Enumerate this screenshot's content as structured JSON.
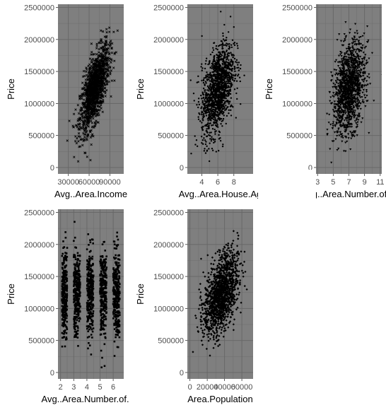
{
  "chart_data": [
    {
      "type": "scatter",
      "title": "",
      "xlabel": "Avg..Area.Income",
      "ylabel": "Price",
      "xlim": [
        15000,
        110000
      ],
      "ylim": [
        -100000,
        2550000
      ],
      "xticks": [
        30000,
        60000,
        90000
      ],
      "xtick_labels": [
        "30000",
        "60000",
        "90000"
      ],
      "yticks": [
        0,
        500000,
        1000000,
        1500000,
        2000000,
        2500000
      ],
      "ytick_labels": [
        "0",
        "500000",
        "1000000",
        "1500000",
        "2000000",
        "2500000"
      ],
      "marker": "x",
      "series": [
        {
          "x": [
            68000,
            72000,
            64000,
            80000,
            56000,
            75000,
            85000,
            60000,
            70000,
            48000,
            90000,
            66000
          ],
          "y": [
            1230000,
            1330000,
            1060000,
            1600000,
            880000,
            1450000,
            1790000,
            980000,
            1280000,
            620000,
            1950000,
            1150000
          ]
        }
      ],
      "grid": true
    },
    {
      "type": "scatter",
      "title": "",
      "xlabel": "Avg..Area.House.Ag",
      "ylabel": "Price",
      "xlim": [
        2.2,
        10.4
      ],
      "ylim": [
        -100000,
        2550000
      ],
      "xticks": [
        4,
        6,
        8
      ],
      "xtick_labels": [
        "4",
        "6",
        "8"
      ],
      "yticks": [
        0,
        500000,
        1000000,
        1500000,
        2000000,
        2500000
      ],
      "ytick_labels": [
        "0",
        "500000",
        "1000000",
        "1500000",
        "2000000",
        "2500000"
      ],
      "marker": "dot",
      "series": [
        {
          "x": [
            6.0,
            6.5,
            5.5,
            7.0,
            5.0,
            6.2,
            7.5,
            4.5,
            6.8,
            5.8,
            8.0,
            4.0
          ],
          "y": [
            1230000,
            1350000,
            1100000,
            1450000,
            980000,
            1260000,
            1600000,
            850000,
            1400000,
            1150000,
            1750000,
            700000
          ]
        }
      ],
      "grid": true
    },
    {
      "type": "scatter",
      "title": "",
      "xlabel": "Avg..Area.Number.of.R",
      "ylabel": "Price",
      "xlim": [
        2.8,
        11.2
      ],
      "ylim": [
        -100000,
        2550000
      ],
      "xticks": [
        3,
        5,
        7,
        9,
        11
      ],
      "xtick_labels": [
        "3",
        "5",
        "7",
        "9",
        "11"
      ],
      "yticks": [
        0,
        500000,
        1000000,
        1500000,
        2000000,
        2500000
      ],
      "ytick_labels": [
        "0",
        "500000",
        "1000000",
        "1500000",
        "2000000",
        "2500000"
      ],
      "marker": "triangle-down",
      "series": [
        {
          "x": [
            7.0,
            7.5,
            6.5,
            8.0,
            6.0,
            7.2,
            8.5,
            5.5,
            7.8,
            6.8,
            9.0,
            5.0
          ],
          "y": [
            1230000,
            1320000,
            1140000,
            1400000,
            1050000,
            1260000,
            1480000,
            980000,
            1360000,
            1200000,
            1550000,
            900000
          ]
        }
      ],
      "grid": true
    },
    {
      "type": "scatter",
      "title": "",
      "xlabel": "Avg..Area.Number.of.Be",
      "ylabel": "Price",
      "xlim": [
        1.8,
        6.8
      ],
      "ylim": [
        -100000,
        2550000
      ],
      "xticks": [
        2,
        3,
        4,
        5,
        6
      ],
      "xtick_labels": [
        "2",
        "3",
        "4",
        "5",
        "6"
      ],
      "yticks": [
        0,
        500000,
        1000000,
        1500000,
        2000000,
        2500000
      ],
      "ytick_labels": [
        "0",
        "500000",
        "1000000",
        "1500000",
        "2000000",
        "2500000"
      ],
      "marker": "square",
      "series": [
        {
          "x": [
            2.2,
            3.1,
            3.3,
            4.1,
            4.3,
            5.2,
            6.1,
            2.4,
            3.2,
            4.2,
            5.3,
            6.2
          ],
          "y": [
            1150000,
            1200000,
            1230000,
            1220000,
            1260000,
            1250000,
            1280000,
            1100000,
            1300000,
            1180000,
            1320000,
            1240000
          ]
        }
      ],
      "grid": true
    },
    {
      "type": "scatter",
      "title": "",
      "xlabel": "Area.Population",
      "ylabel": "Price",
      "xlim": [
        -3000,
        73000
      ],
      "ylim": [
        -100000,
        2550000
      ],
      "xticks": [
        0,
        20000,
        40000,
        60000
      ],
      "xtick_labels": [
        "0",
        "20000",
        "40000",
        "60000"
      ],
      "yticks": [
        0,
        500000,
        1000000,
        1500000,
        2000000,
        2500000
      ],
      "ytick_labels": [
        "0",
        "500000",
        "1000000",
        "1500000",
        "2000000",
        "2500000"
      ],
      "marker": "diamond",
      "series": [
        {
          "x": [
            36000,
            40000,
            32000,
            44000,
            28000,
            38000,
            50000,
            24000,
            42000,
            34000,
            55000,
            20000
          ],
          "y": [
            1230000,
            1330000,
            1120000,
            1420000,
            1020000,
            1280000,
            1600000,
            900000,
            1380000,
            1170000,
            1750000,
            800000
          ]
        }
      ],
      "grid": true
    }
  ]
}
